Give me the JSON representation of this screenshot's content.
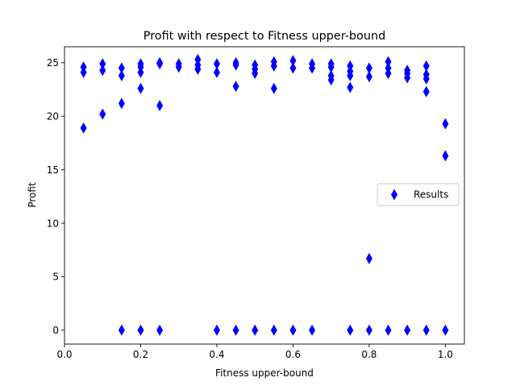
{
  "chart_data": {
    "type": "scatter",
    "title": "Profit with respect to Fitness upper-bound",
    "xlabel": "Fitness upper-bound",
    "ylabel": "Profit",
    "xlim": [
      0.0,
      1.05
    ],
    "ylim": [
      -1.3,
      26.5
    ],
    "xticks": [
      0.0,
      0.2,
      0.4,
      0.6,
      0.8,
      1.0
    ],
    "xtick_labels": [
      "0.0",
      "0.2",
      "0.4",
      "0.6",
      "0.8",
      "1.0"
    ],
    "yticks": [
      0,
      5,
      10,
      15,
      20,
      25
    ],
    "ytick_labels": [
      "0",
      "5",
      "10",
      "15",
      "20",
      "25"
    ],
    "grid": false,
    "legend_position": "center-right",
    "series": [
      {
        "name": "Results",
        "color": "#0000ff",
        "marker": "thin_diamond",
        "points": [
          [
            0.05,
            24.6
          ],
          [
            0.05,
            24.1
          ],
          [
            0.05,
            18.9
          ],
          [
            0.1,
            24.9
          ],
          [
            0.1,
            24.3
          ],
          [
            0.1,
            20.2
          ],
          [
            0.15,
            24.5
          ],
          [
            0.15,
            23.8
          ],
          [
            0.15,
            21.2
          ],
          [
            0.15,
            0.0
          ],
          [
            0.2,
            24.9
          ],
          [
            0.2,
            24.6
          ],
          [
            0.2,
            24.1
          ],
          [
            0.2,
            22.6
          ],
          [
            0.2,
            0.0
          ],
          [
            0.25,
            25.0
          ],
          [
            0.25,
            24.9
          ],
          [
            0.25,
            21.0
          ],
          [
            0.25,
            0.0
          ],
          [
            0.3,
            24.9
          ],
          [
            0.3,
            24.6
          ],
          [
            0.35,
            25.3
          ],
          [
            0.35,
            24.8
          ],
          [
            0.35,
            24.4
          ],
          [
            0.4,
            24.9
          ],
          [
            0.4,
            24.1
          ],
          [
            0.4,
            0.0
          ],
          [
            0.45,
            25.0
          ],
          [
            0.45,
            24.8
          ],
          [
            0.45,
            22.8
          ],
          [
            0.45,
            0.0
          ],
          [
            0.5,
            24.8
          ],
          [
            0.5,
            24.4
          ],
          [
            0.5,
            24.0
          ],
          [
            0.5,
            0.0
          ],
          [
            0.55,
            25.1
          ],
          [
            0.55,
            24.7
          ],
          [
            0.55,
            22.6
          ],
          [
            0.55,
            0.0
          ],
          [
            0.6,
            25.2
          ],
          [
            0.6,
            24.5
          ],
          [
            0.6,
            0.0
          ],
          [
            0.65,
            24.9
          ],
          [
            0.65,
            24.5
          ],
          [
            0.65,
            0.0
          ],
          [
            0.7,
            24.9
          ],
          [
            0.7,
            24.6
          ],
          [
            0.7,
            23.8
          ],
          [
            0.7,
            23.4
          ],
          [
            0.75,
            24.7
          ],
          [
            0.75,
            24.2
          ],
          [
            0.75,
            23.8
          ],
          [
            0.75,
            22.7
          ],
          [
            0.75,
            0.0
          ],
          [
            0.8,
            24.5
          ],
          [
            0.8,
            23.7
          ],
          [
            0.8,
            6.7
          ],
          [
            0.8,
            0.0
          ],
          [
            0.85,
            25.1
          ],
          [
            0.85,
            24.5
          ],
          [
            0.85,
            24.0
          ],
          [
            0.85,
            0.0
          ],
          [
            0.9,
            24.3
          ],
          [
            0.9,
            24.0
          ],
          [
            0.9,
            23.6
          ],
          [
            0.9,
            0.0
          ],
          [
            0.95,
            24.7
          ],
          [
            0.95,
            23.9
          ],
          [
            0.95,
            23.5
          ],
          [
            0.95,
            22.3
          ],
          [
            0.95,
            0.0
          ],
          [
            1.0,
            19.3
          ],
          [
            1.0,
            16.3
          ],
          [
            1.0,
            0.0
          ]
        ]
      }
    ]
  }
}
